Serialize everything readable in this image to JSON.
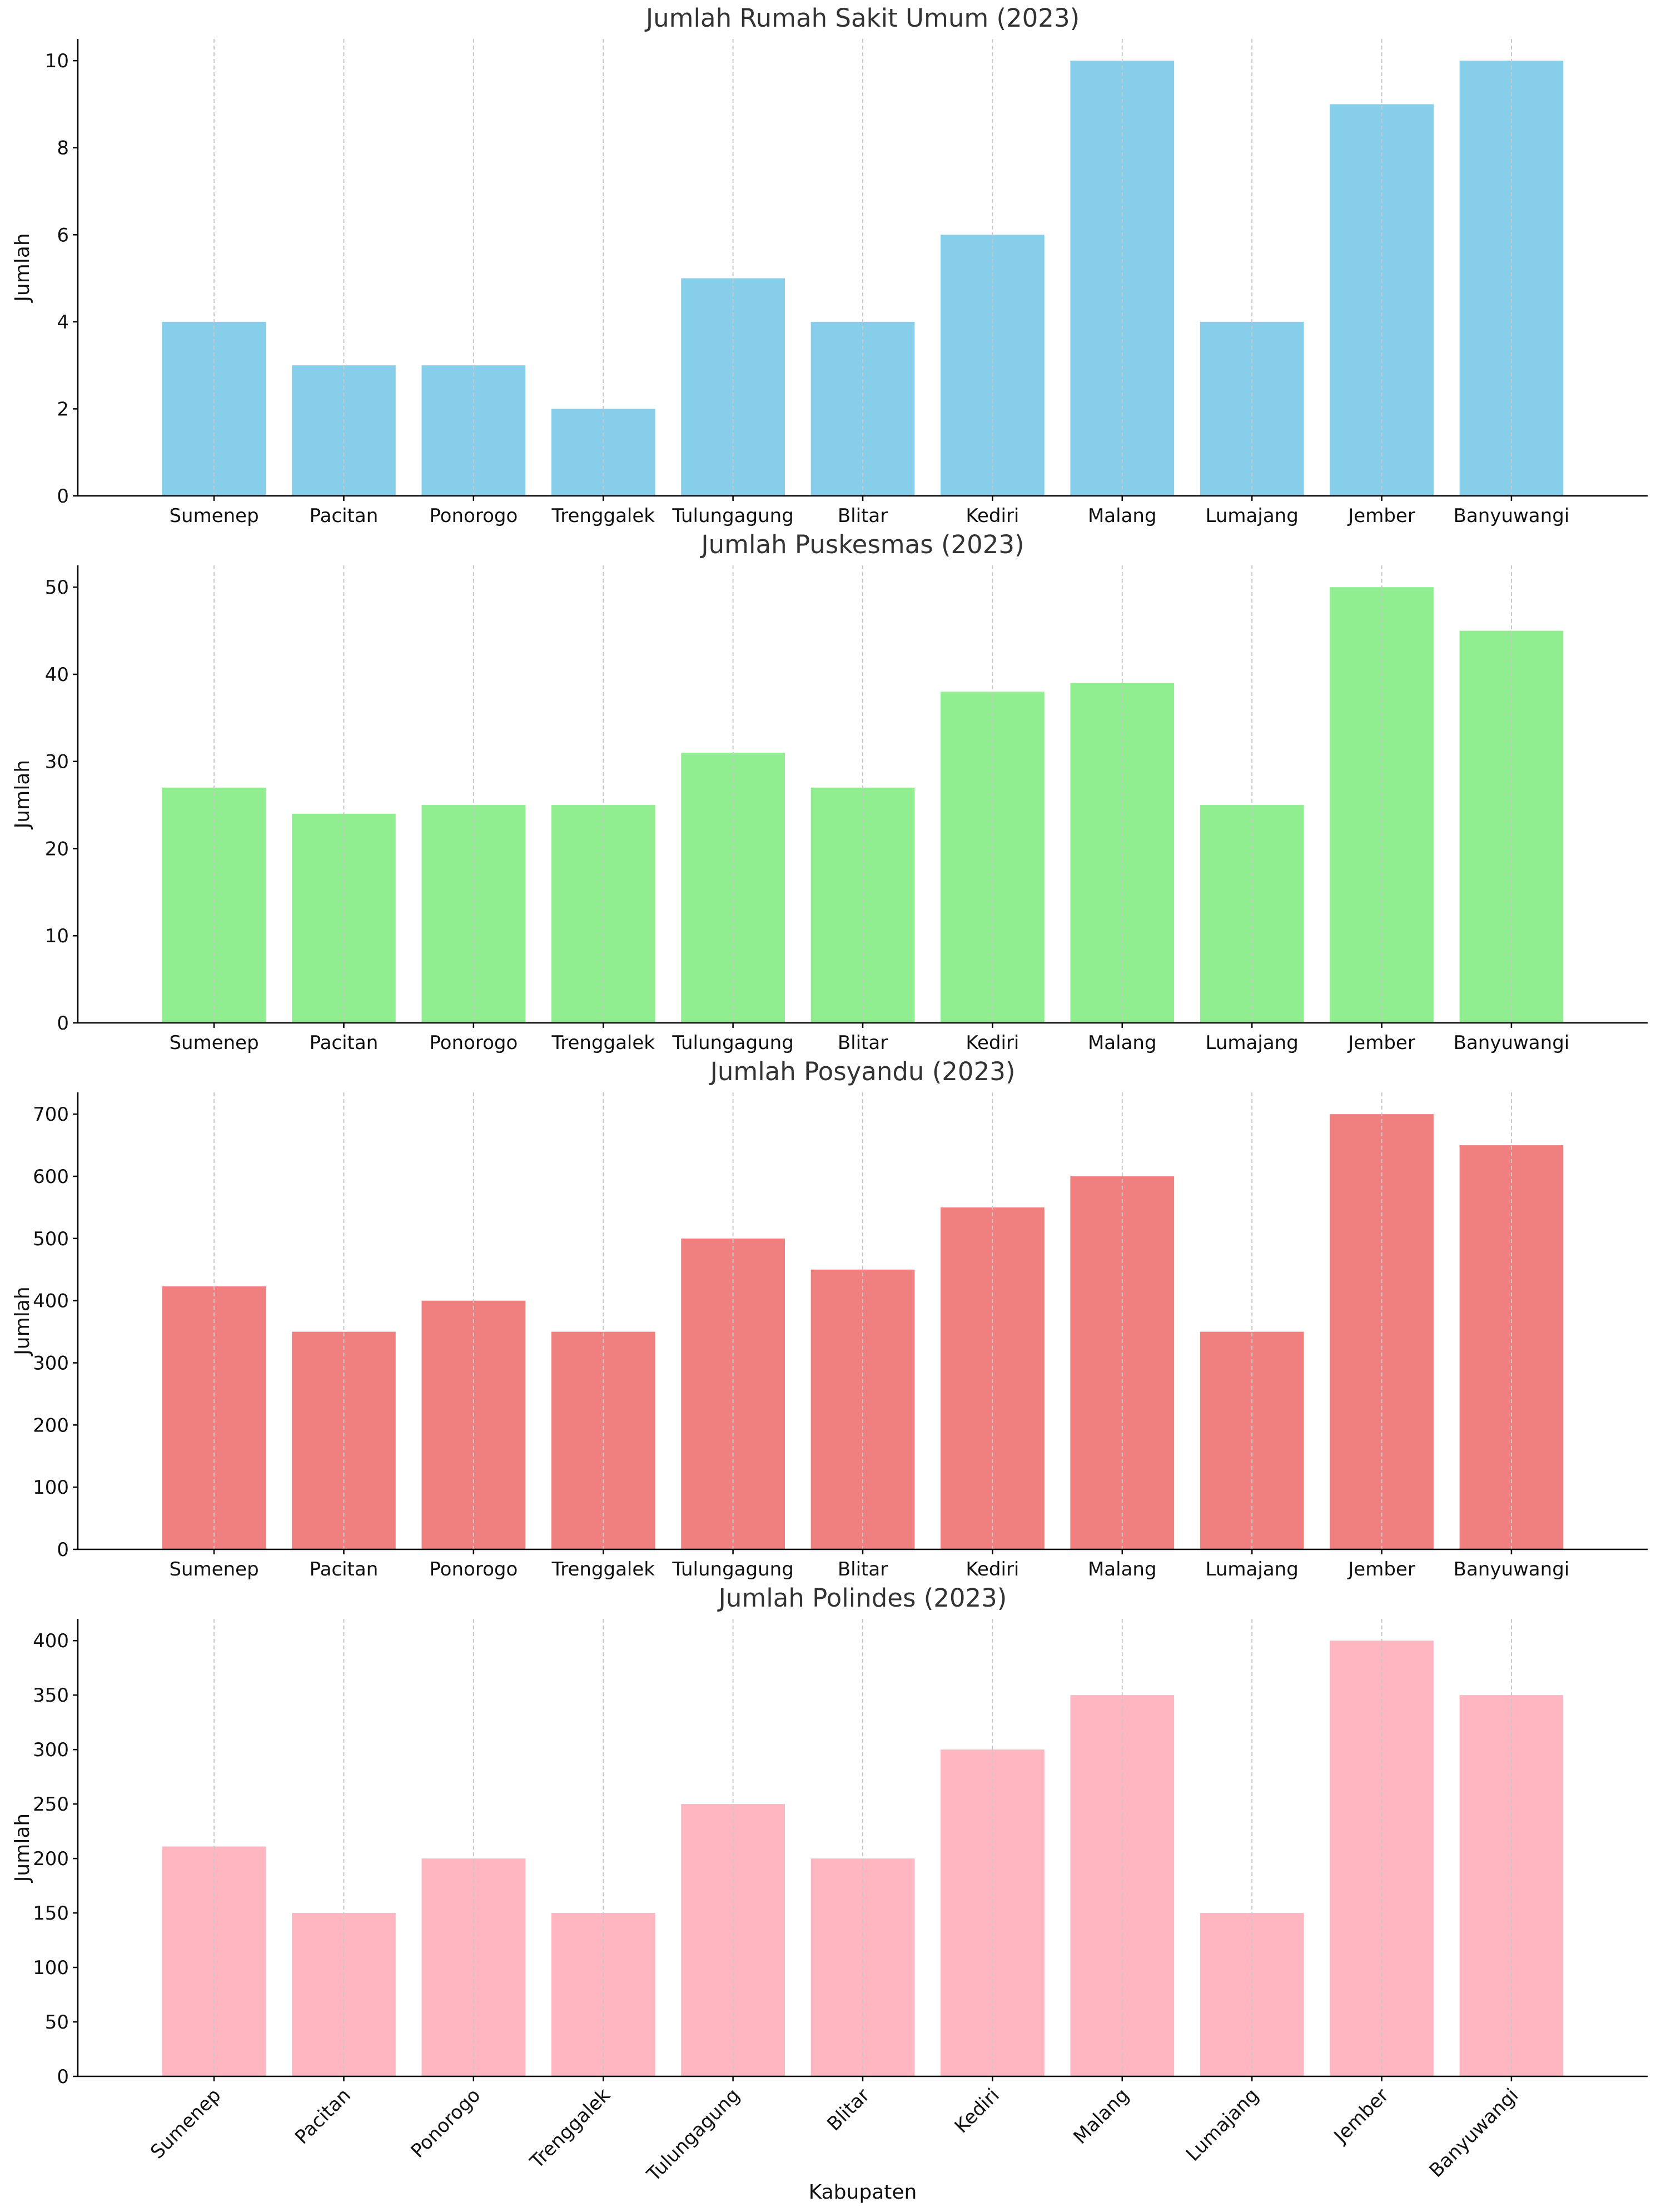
{
  "chart_data": [
    {
      "type": "bar",
      "title": "Jumlah Rumah Sakit Umum (2023)",
      "xlabel": "",
      "ylabel": "Jumlah",
      "categories": [
        "Sumenep",
        "Pacitan",
        "Ponorogo",
        "Trenggalek",
        "Tulungagung",
        "Blitar",
        "Kediri",
        "Malang",
        "Lumajang",
        "Jember",
        "Banyuwangi"
      ],
      "values": [
        4,
        3,
        3,
        2,
        5,
        4,
        6,
        10,
        4,
        9,
        10
      ],
      "ylim": [
        0,
        10.5
      ],
      "yticks": [
        0,
        2,
        4,
        6,
        8,
        10
      ],
      "color": "#87ceeb",
      "grid": "vertical-dashed",
      "xtick_rotation": 0
    },
    {
      "type": "bar",
      "title": "Jumlah Puskesmas (2023)",
      "xlabel": "",
      "ylabel": "Jumlah",
      "categories": [
        "Sumenep",
        "Pacitan",
        "Ponorogo",
        "Trenggalek",
        "Tulungagung",
        "Blitar",
        "Kediri",
        "Malang",
        "Lumajang",
        "Jember",
        "Banyuwangi"
      ],
      "values": [
        27,
        24,
        25,
        25,
        31,
        27,
        38,
        39,
        25,
        50,
        45
      ],
      "ylim": [
        0,
        52.5
      ],
      "yticks": [
        0,
        10,
        20,
        30,
        40,
        50
      ],
      "color": "#90ee90",
      "grid": "vertical-dashed",
      "xtick_rotation": 0
    },
    {
      "type": "bar",
      "title": "Jumlah Posyandu (2023)",
      "xlabel": "",
      "ylabel": "Jumlah",
      "categories": [
        "Sumenep",
        "Pacitan",
        "Ponorogo",
        "Trenggalek",
        "Tulungagung",
        "Blitar",
        "Kediri",
        "Malang",
        "Lumajang",
        "Jember",
        "Banyuwangi"
      ],
      "values": [
        423,
        350,
        400,
        350,
        500,
        450,
        550,
        600,
        350,
        700,
        650
      ],
      "ylim": [
        0,
        735
      ],
      "yticks": [
        0,
        100,
        200,
        300,
        400,
        500,
        600,
        700
      ],
      "color": "#f08080",
      "grid": "vertical-dashed",
      "xtick_rotation": 0
    },
    {
      "type": "bar",
      "title": "Jumlah Polindes (2023)",
      "xlabel": "Kabupaten",
      "ylabel": "Jumlah",
      "categories": [
        "Sumenep",
        "Pacitan",
        "Ponorogo",
        "Trenggalek",
        "Tulungagung",
        "Blitar",
        "Kediri",
        "Malang",
        "Lumajang",
        "Jember",
        "Banyuwangi"
      ],
      "values": [
        211,
        150,
        200,
        150,
        250,
        200,
        300,
        350,
        150,
        400,
        350
      ],
      "ylim": [
        0,
        420
      ],
      "yticks": [
        0,
        50,
        100,
        150,
        200,
        250,
        300,
        350,
        400
      ],
      "color": "#ffb6c1",
      "grid": "vertical-dashed",
      "xtick_rotation": 45
    }
  ]
}
